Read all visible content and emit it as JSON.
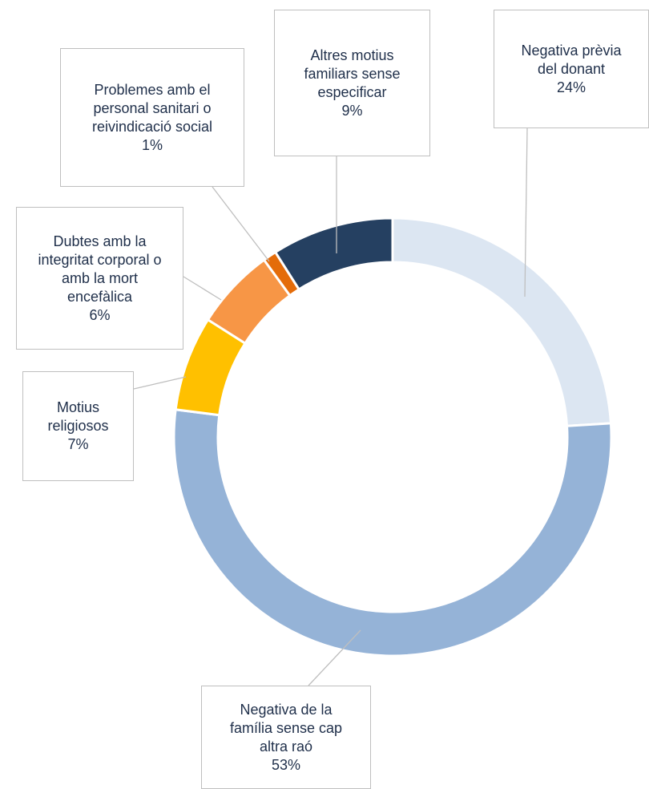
{
  "chart_data": {
    "type": "donut",
    "categories": [
      "Negativa prèvia del donant",
      "Negativa de la família sense cap altra raó",
      "Motius religiosos",
      "Dubtes amb la integritat corporal o amb la mort encefàlica",
      "Problemes amb el personal sanitari o reivindicació social",
      "Altres motius familiars sense especificar"
    ],
    "values": [
      24,
      53,
      7,
      6,
      1,
      9
    ],
    "value_labels": [
      "24%",
      "53%",
      "7%",
      "6%",
      "1%",
      "9%"
    ],
    "colors": [
      "#dce6f2",
      "#95b3d7",
      "#ffc000",
      "#f79646",
      "#e46c0a",
      "#254061"
    ]
  }
}
